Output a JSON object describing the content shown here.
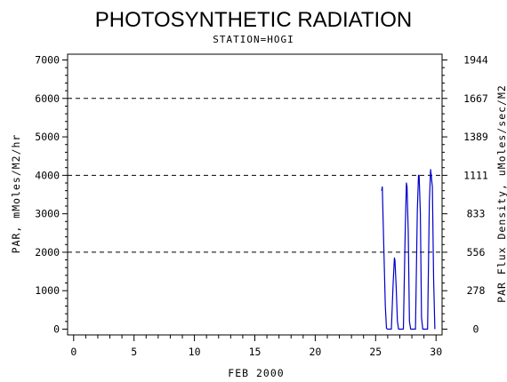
{
  "chart_data": {
    "type": "line",
    "title": "PHOTOSYNTHETIC RADIATION",
    "subtitle": "STATION=HOGI",
    "xlabel": "FEB 2000",
    "ylabel": "PAR, mMoles/M2/hr",
    "y2label": "PAR Flux Density, uMoles/sec/M2",
    "xlim": [
      -0.5,
      30.5
    ],
    "ylim": [
      -150,
      7150
    ],
    "x_ticks": [
      "0",
      "5",
      "10",
      "15",
      "20",
      "25",
      "30"
    ],
    "y_ticks": [
      "0",
      "1000",
      "2000",
      "3000",
      "4000",
      "5000",
      "6000",
      "7000"
    ],
    "y2_ticks": [
      "0",
      "278",
      "556",
      "833",
      "1111",
      "1389",
      "1667",
      "1944"
    ],
    "dashed_gridlines_y": [
      2000,
      4000,
      6000
    ],
    "line_color": "#0000c8",
    "series": [
      {
        "x": [
          25.5,
          25.55,
          25.65,
          25.8,
          25.9,
          26.0,
          26.3,
          26.45,
          26.55,
          26.6,
          26.7,
          26.8,
          26.9,
          27.0,
          27.3,
          27.45,
          27.55,
          27.6,
          27.7,
          27.8,
          27.9,
          28.0,
          28.3,
          28.45,
          28.55,
          28.6,
          28.7,
          28.8,
          28.9,
          29.0,
          29.3,
          29.45,
          29.55,
          29.6,
          29.7,
          29.8,
          29.9
        ],
        "y": [
          3600,
          3700,
          2500,
          600,
          20,
          0,
          0,
          1200,
          1850,
          1800,
          1100,
          200,
          0,
          0,
          0,
          2600,
          3800,
          3700,
          2500,
          200,
          0,
          0,
          0,
          3100,
          4000,
          4000,
          3000,
          300,
          0,
          0,
          0,
          3300,
          4150,
          4000,
          3700,
          1300,
          0
        ]
      }
    ]
  }
}
